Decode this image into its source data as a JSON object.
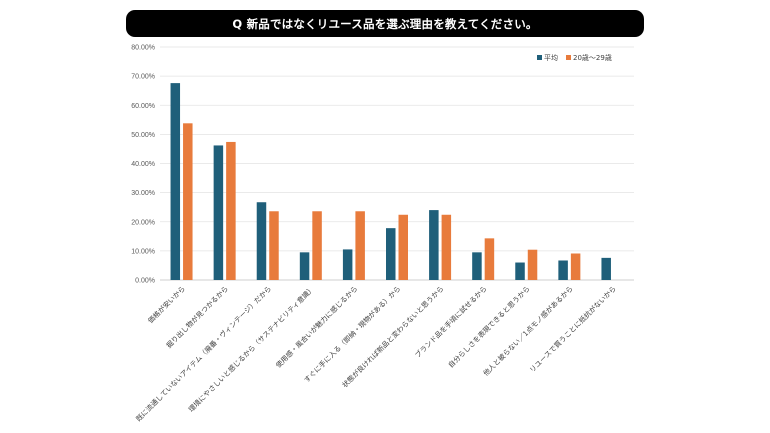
{
  "title": "Q 新品ではなくリユース品を選ぶ理由を教えてください。",
  "chart_data": {
    "type": "bar",
    "categories": [
      "価格が安いから",
      "掘り出し物が見つかるから",
      "既に流通していないアイテム（廃番・ヴィンテージ）だから",
      "環境にやさしいと感じるから（サステナビリティ意識）",
      "使用感・風合いが魅力に感じるから",
      "すぐに手に入る（即納・現物がある）から",
      "状態が良ければ新品と変わらないと思うから",
      "ブランド品を手頃に試せるから",
      "自分らしさを表現できると思うから",
      "他人と被らない／1点モノ感があるから",
      "リユースで買うことに抵抗がないから"
    ],
    "series": [
      {
        "name": "平均",
        "color": "#1f5f7a",
        "values": [
          67.6,
          46.2,
          26.7,
          9.5,
          10.5,
          17.8,
          24.0,
          9.5,
          6.0,
          6.7,
          7.6
        ]
      },
      {
        "name": "20歳〜29歳",
        "color": "#e87b3c",
        "values": [
          53.8,
          47.4,
          23.6,
          23.6,
          23.6,
          22.4,
          22.4,
          14.3,
          10.4,
          9.1,
          null
        ]
      }
    ],
    "ylim": [
      0,
      80
    ],
    "yticks": [
      "0.00%",
      "10.00%",
      "20.00%",
      "30.00%",
      "40.00%",
      "50.00%",
      "60.00%",
      "70.00%",
      "80.00%"
    ],
    "grid": true,
    "legend": "top-right"
  }
}
